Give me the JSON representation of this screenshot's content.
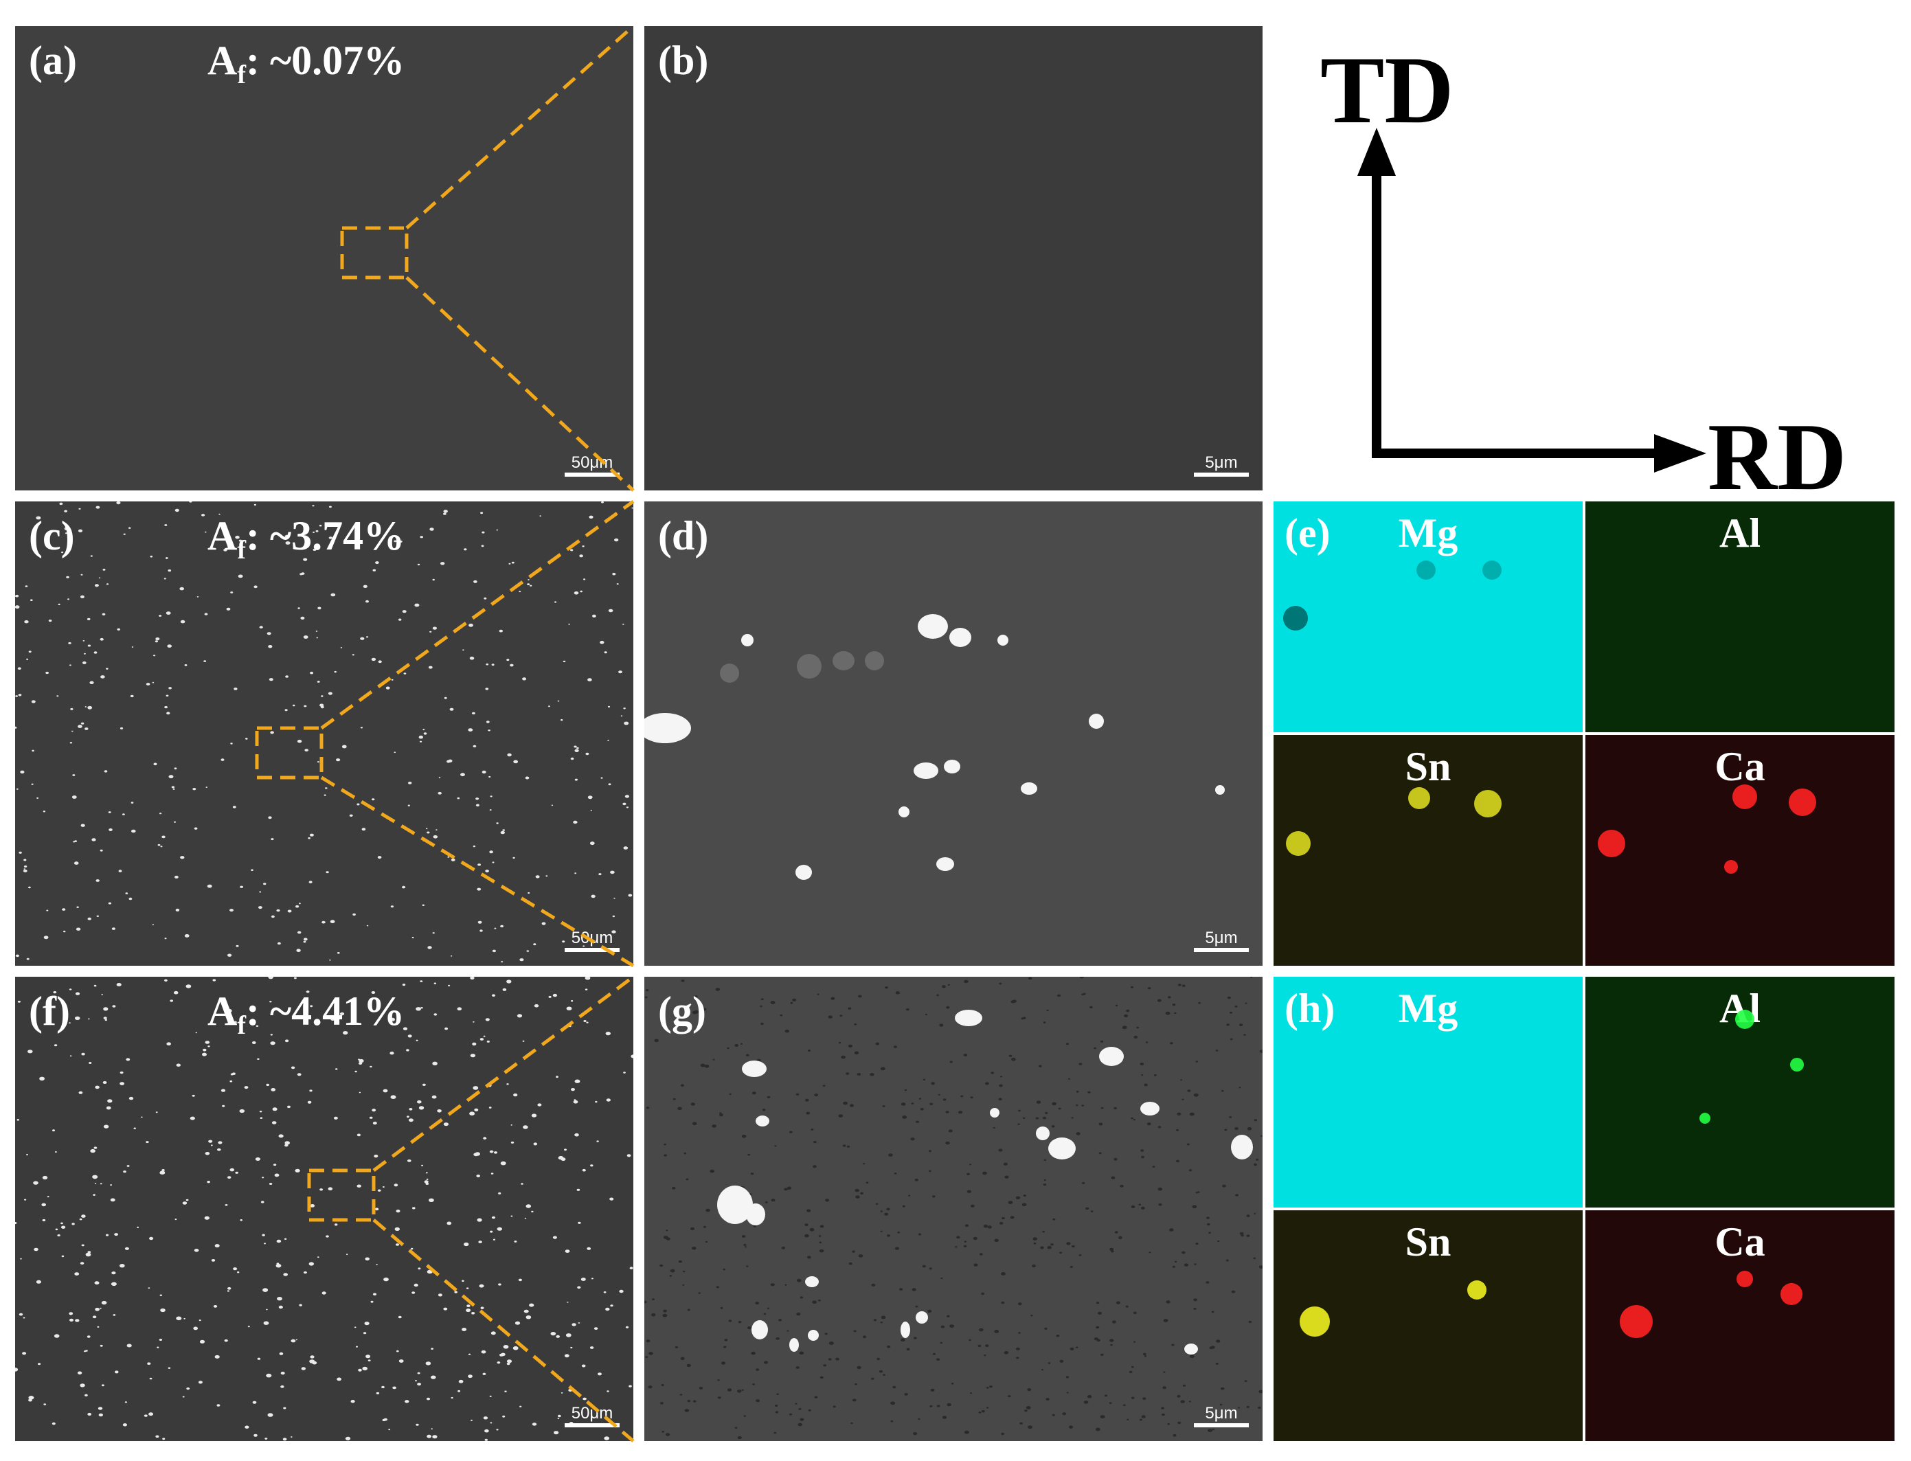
{
  "panels": [
    {
      "id": "a",
      "label": "(a)",
      "af": "A",
      "af_sub": "f",
      "af_value": ": ~0.07%",
      "scale": "50μm"
    },
    {
      "id": "b",
      "label": "(b)",
      "scale": "5μm"
    },
    {
      "id": "c",
      "label": "(c)",
      "af": "A",
      "af_sub": "f",
      "af_value": ": ~3.74%",
      "scale": "50μm"
    },
    {
      "id": "d",
      "label": "(d)",
      "scale": "5μm"
    },
    {
      "id": "e",
      "label": "(e)"
    },
    {
      "id": "f",
      "label": "(f)",
      "af": "A",
      "af_sub": "f",
      "af_value": ": ~4.41%",
      "scale": "50μm"
    },
    {
      "id": "g",
      "label": "(g)",
      "scale": "5μm"
    },
    {
      "id": "h",
      "label": "(h)"
    }
  ],
  "eds_elements": {
    "mg": {
      "name": "Mg",
      "color": "#00e5e5"
    },
    "al": {
      "name": "Al",
      "color": "#00ff33"
    },
    "sn": {
      "name": "Sn",
      "color": "#ffff33"
    },
    "ca": {
      "name": "Ca",
      "color": "#ff2222"
    }
  },
  "axes": {
    "td": "TD",
    "rd": "RD"
  },
  "colors": {
    "zoom_box": "#f2a81c",
    "sem_light": "#4a4a4a",
    "sem_dark": "#3a3a3a"
  }
}
